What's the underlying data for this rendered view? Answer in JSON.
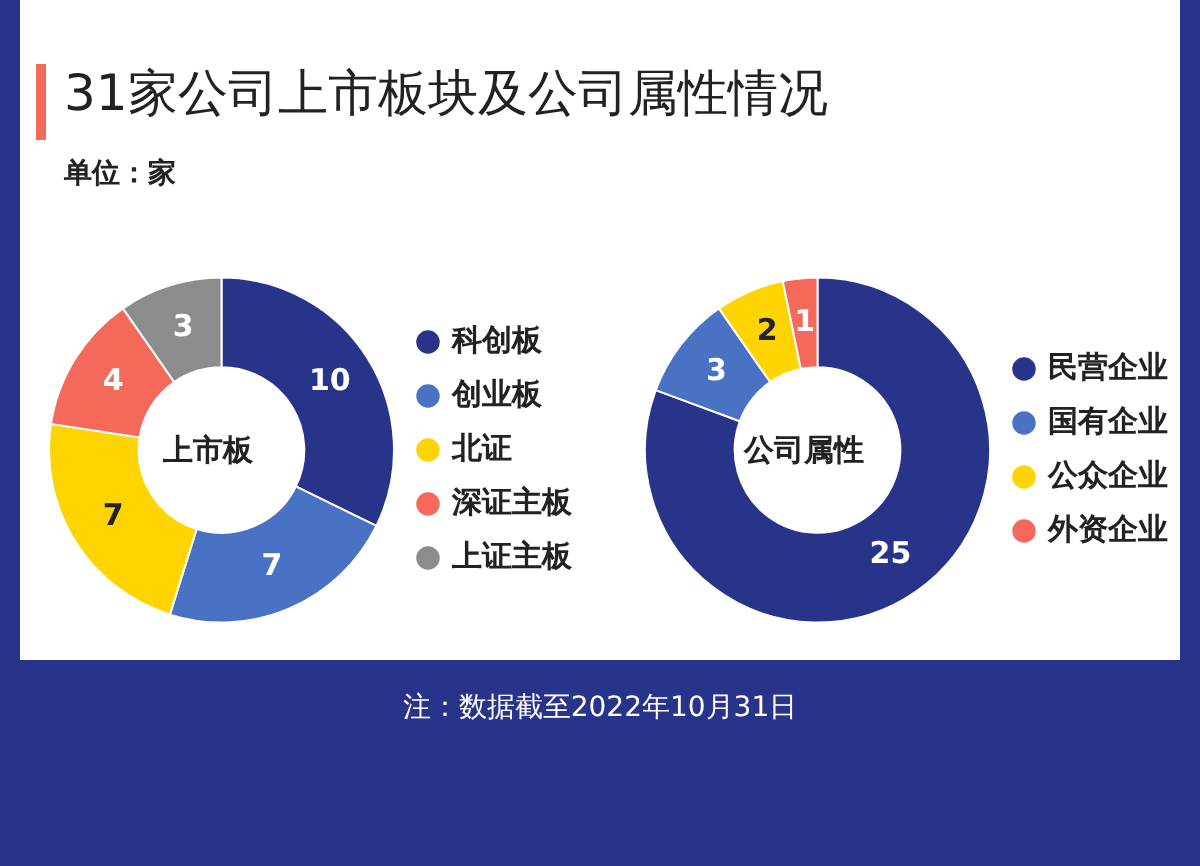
{
  "chart_data": [
    {
      "type": "donut",
      "title": "31家公司上市板块及公司属性情况",
      "subtitle": "单位：家",
      "categories": [
        "科创板",
        "创业板",
        "北证",
        "深证主板",
        "上证主板"
      ],
      "values": [
        10,
        7,
        7,
        4,
        3
      ],
      "colors": [
        "#28348a",
        "#4a72c4",
        "#ffd400",
        "#f4695a",
        "#8c8c8c"
      ],
      "data_labels": true,
      "legend": "right",
      "annotations": [
        "上市板"
      ]
    },
    {
      "type": "donut",
      "categories": [
        "民营企业",
        "国有企业",
        "公众企业",
        "外资企业"
      ],
      "values": [
        25,
        3,
        2,
        1
      ],
      "colors": [
        "#28348a",
        "#4a72c4",
        "#ffd400",
        "#f4695a"
      ],
      "data_labels": true,
      "legend": "right",
      "annotations": [
        "公司属性",
        "注：数据截至2022年10月31日"
      ]
    }
  ]
}
